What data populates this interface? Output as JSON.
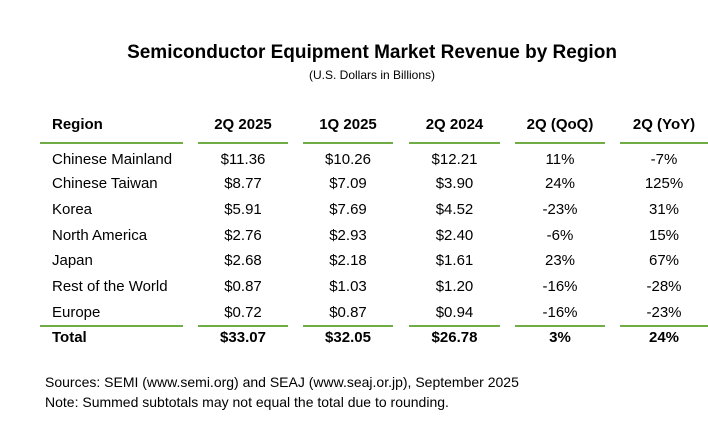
{
  "title": "Semiconductor Equipment Market Revenue by Region",
  "subtitle": "(U.S. Dollars in Billions)",
  "table": {
    "headers": [
      "Region",
      "2Q 2025",
      "1Q 2025",
      "2Q 2024",
      "2Q (QoQ)",
      "2Q (YoY)"
    ],
    "rows": [
      [
        "Chinese Mainland",
        "$11.36",
        "$10.26",
        "$12.21",
        "11%",
        "-7%"
      ],
      [
        "Chinese Taiwan",
        "$8.77",
        "$7.09",
        "$3.90",
        "24%",
        "125%"
      ],
      [
        "Korea",
        "$5.91",
        "$7.69",
        "$4.52",
        "-23%",
        "31%"
      ],
      [
        "North America",
        "$2.76",
        "$2.93",
        "$2.40",
        "-6%",
        "15%"
      ],
      [
        "Japan",
        "$2.68",
        "$2.18",
        "$1.61",
        "23%",
        "67%"
      ],
      [
        "Rest of the World",
        "$0.87",
        "$1.03",
        "$1.20",
        "-16%",
        "-28%"
      ],
      [
        "Europe",
        "$0.72",
        "$0.87",
        "$0.94",
        "-16%",
        "-23%"
      ]
    ],
    "total": [
      "Total",
      "$33.07",
      "$32.05",
      "$26.78",
      "3%",
      "24%"
    ],
    "rule_color": "#70ad47"
  },
  "notes": {
    "sources": "Sources: SEMI (www.semi.org) and SEAJ (www.seaj.or.jp), September 2025",
    "note": "Note: Summed subtotals may not equal the total due to rounding."
  }
}
